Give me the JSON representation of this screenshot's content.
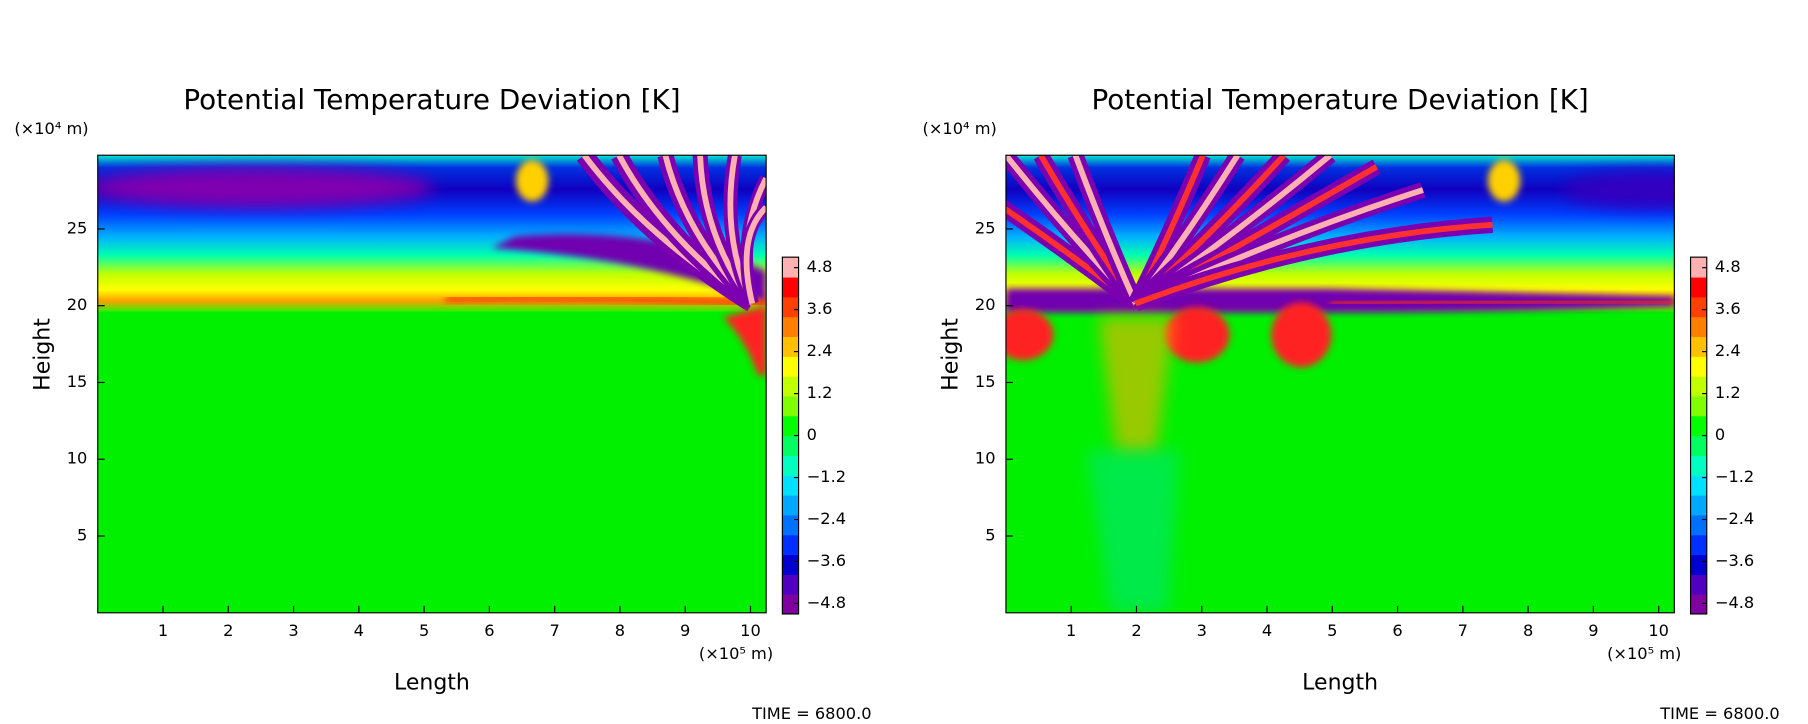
{
  "chart_data": [
    {
      "type": "contour",
      "title": "Potential Temperature Deviation [K]",
      "xlabel": "Length",
      "ylabel": "Height",
      "x_unit": "(×10⁵ m)",
      "y_unit": "(×10⁴ m)",
      "xlim": [
        0,
        10.24
      ],
      "xticks": [
        1,
        2,
        3,
        4,
        5,
        6,
        7,
        8,
        9,
        10
      ],
      "ylim": [
        0,
        29.8
      ],
      "yticks": [
        5,
        10,
        15,
        20,
        25
      ],
      "colorbar": {
        "lim": [
          -5.1,
          5.1
        ],
        "ticks": [
          {
            "value": -4.8,
            "label": "−4.8"
          },
          {
            "value": -3.6,
            "label": "−3.6"
          },
          {
            "value": -2.4,
            "label": "−2.4"
          },
          {
            "value": -1.2,
            "label": "−1.2"
          },
          0,
          1.2,
          2.4,
          3.6,
          4.8
        ],
        "colors": [
          "#8000a0",
          "#5000c0",
          "#0000d0",
          "#0030ff",
          "#0070ff",
          "#00a8ff",
          "#00e0ff",
          "#00ffc0",
          "#00ff60",
          "#00ff00",
          "#80ff00",
          "#c0ff00",
          "#ffff00",
          "#ffc000",
          "#ff8000",
          "#ff4000",
          "#ff0000",
          "#ffb0b0"
        ]
      },
      "annotation": "TIME = 6800.0"
    },
    {
      "type": "contour",
      "title": "Potential Temperature Deviation [K]",
      "xlabel": "Length",
      "ylabel": "Height",
      "x_unit": "(×10⁵ m)",
      "y_unit": "(×10⁴ m)",
      "xlim": [
        0,
        10.24
      ],
      "xticks": [
        1,
        2,
        3,
        4,
        5,
        6,
        7,
        8,
        9,
        10
      ],
      "ylim": [
        0,
        29.8
      ],
      "yticks": [
        5,
        10,
        15,
        20,
        25
      ],
      "colorbar": {
        "lim": [
          -5.1,
          5.1
        ],
        "ticks": [
          {
            "value": -4.8,
            "label": "−4.8"
          },
          {
            "value": -3.6,
            "label": "−3.6"
          },
          {
            "value": -2.4,
            "label": "−2.4"
          },
          {
            "value": -1.2,
            "label": "−1.2"
          },
          0,
          1.2,
          2.4,
          3.6,
          4.8
        ],
        "colors": [
          "#8000a0",
          "#5000c0",
          "#0000d0",
          "#0030ff",
          "#0070ff",
          "#00a8ff",
          "#00e0ff",
          "#00ffc0",
          "#00ff60",
          "#00ff00",
          "#80ff00",
          "#c0ff00",
          "#ffff00",
          "#ffc000",
          "#ff8000",
          "#ff4000",
          "#ff0000",
          "#ffb0b0"
        ]
      },
      "annotation": "TIME = 6800.0"
    }
  ]
}
